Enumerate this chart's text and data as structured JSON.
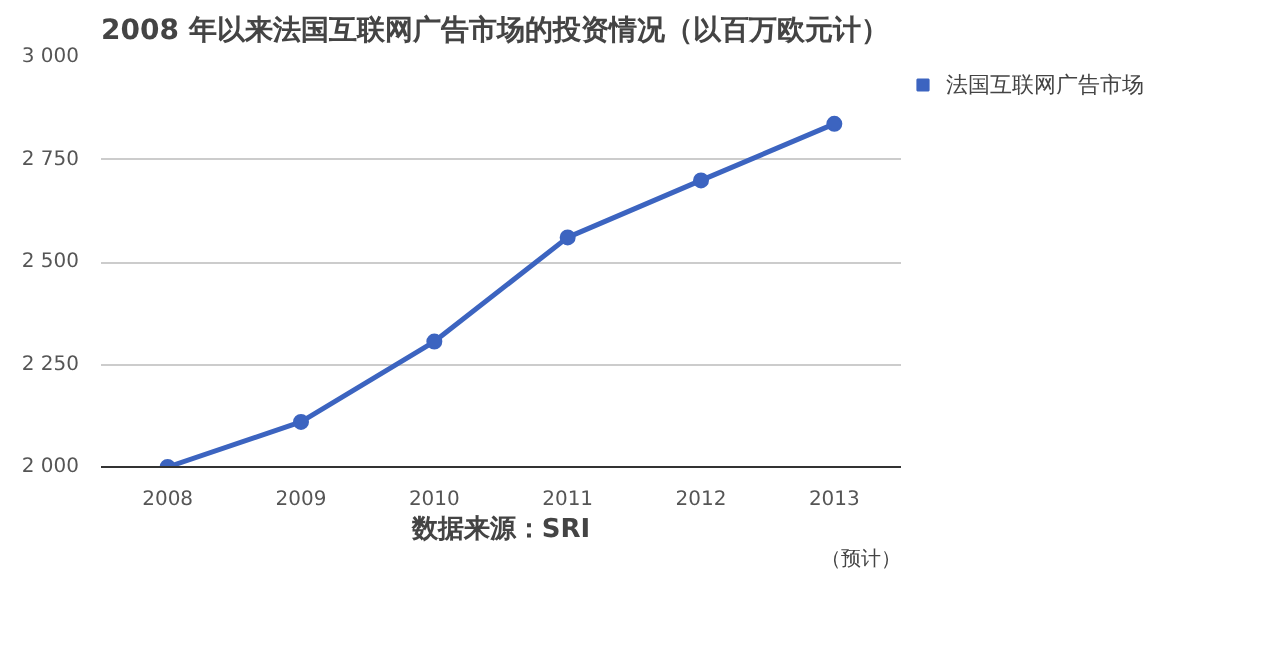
{
  "chart_data": {
    "type": "line",
    "title": "2008 年以来法国互联网广告市场的投资情况（以百万欧元计）",
    "x": [
      2008,
      2009,
      2010,
      2011,
      2012,
      2013
    ],
    "series": [
      {
        "name": "法国互联网广告市场",
        "color": "#3c64c0",
        "values": [
          2000,
          2110,
          2306,
          2560,
          2699,
          2837
        ]
      }
    ],
    "xlim": [
      2007.5,
      2013.5
    ],
    "xticks": [
      2008,
      2009,
      2010,
      2011,
      2012,
      2013
    ],
    "ylim": [
      2000,
      3000
    ],
    "yticks": [
      {
        "value": 2000,
        "label": "2 000"
      },
      {
        "value": 2250,
        "label": "2 250"
      },
      {
        "value": 2500,
        "label": "2 500"
      },
      {
        "value": 2750,
        "label": "2 750"
      },
      {
        "value": 3000,
        "label": "3 000"
      }
    ],
    "grid": "y",
    "legend": "right",
    "marker": "circle",
    "line_style": "solid",
    "annotations": [
      "数据来源：SRI",
      "（预计）"
    ]
  }
}
